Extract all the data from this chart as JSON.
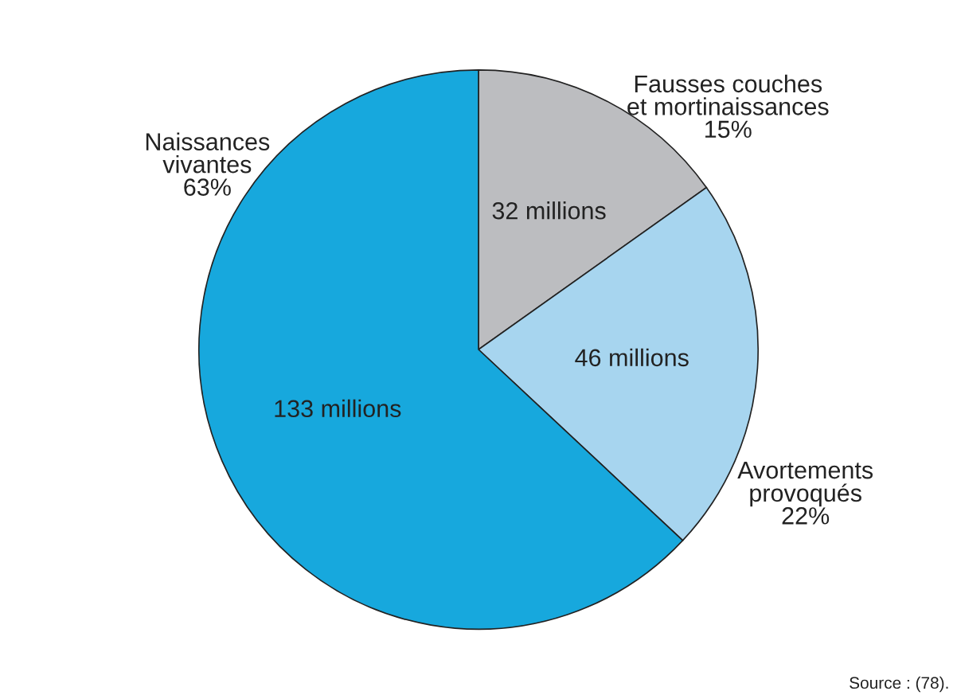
{
  "chart_data": {
    "type": "pie",
    "categories": [
      "Fausses couches\net mortinaissances\n15%",
      "Avortements\nprovoqués\n22%",
      "Naissances\nvivantes\n63%"
    ],
    "values": [
      32,
      46,
      133
    ],
    "value_labels": [
      "32 millions",
      "46 millions",
      "133 millions"
    ],
    "colors": [
      "#bcbdc0",
      "#a7d5ef",
      "#17a8dd"
    ],
    "annotations": [
      "Source : (78)."
    ],
    "legend": false
  }
}
